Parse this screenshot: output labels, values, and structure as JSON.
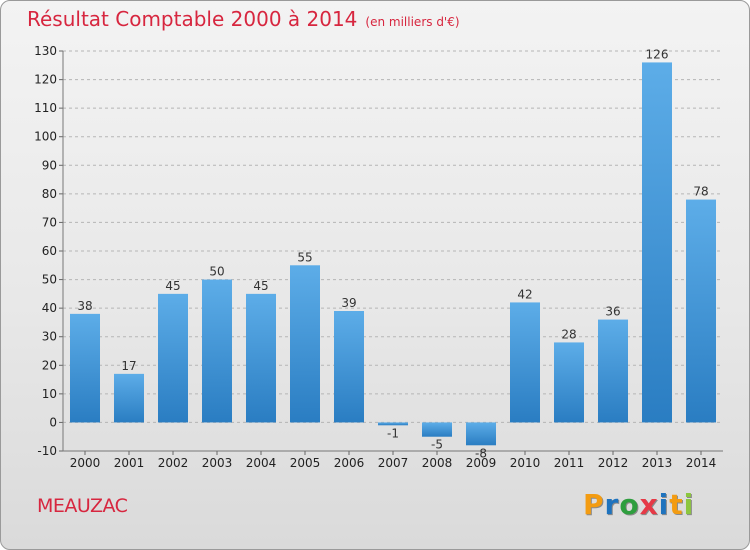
{
  "header": {
    "title": "Résultat Comptable 2000 à 2014",
    "unit": "(en milliers d'€)"
  },
  "footer": {
    "town": "MEAUZAC",
    "logo_letters": [
      "P",
      "r",
      "o",
      "x",
      "i",
      "t",
      "i"
    ],
    "logo_colors": [
      "#f39c12",
      "#1e73be",
      "#2e9e3e",
      "#e63946",
      "#1e73be",
      "#f39c12",
      "#8cc63f"
    ]
  },
  "colors": {
    "bar_light": "#5dade8",
    "bar_dark": "#2a7dc2",
    "accent": "#d7263f"
  },
  "chart_data": {
    "type": "bar",
    "categories": [
      "2000",
      "2001",
      "2002",
      "2003",
      "2004",
      "2005",
      "2006",
      "2007",
      "2008",
      "2009",
      "2010",
      "2011",
      "2012",
      "2013",
      "2014"
    ],
    "values": [
      38,
      17,
      45,
      50,
      45,
      55,
      39,
      -1,
      -5,
      -8,
      42,
      28,
      36,
      126,
      78
    ],
    "data_labels": [
      "38",
      "17",
      "45",
      "50",
      "45",
      "55",
      "39",
      "-1",
      "-5",
      "-8",
      "42",
      "28",
      "36",
      "126",
      "78"
    ],
    "yticks": [
      -10,
      0,
      10,
      20,
      30,
      40,
      50,
      60,
      70,
      80,
      90,
      100,
      110,
      120,
      130
    ],
    "ylim": [
      -10,
      130
    ],
    "grid": "horizontal dashed",
    "title": "Résultat Comptable 2000 à 2014",
    "xlabel": "",
    "ylabel": ""
  }
}
